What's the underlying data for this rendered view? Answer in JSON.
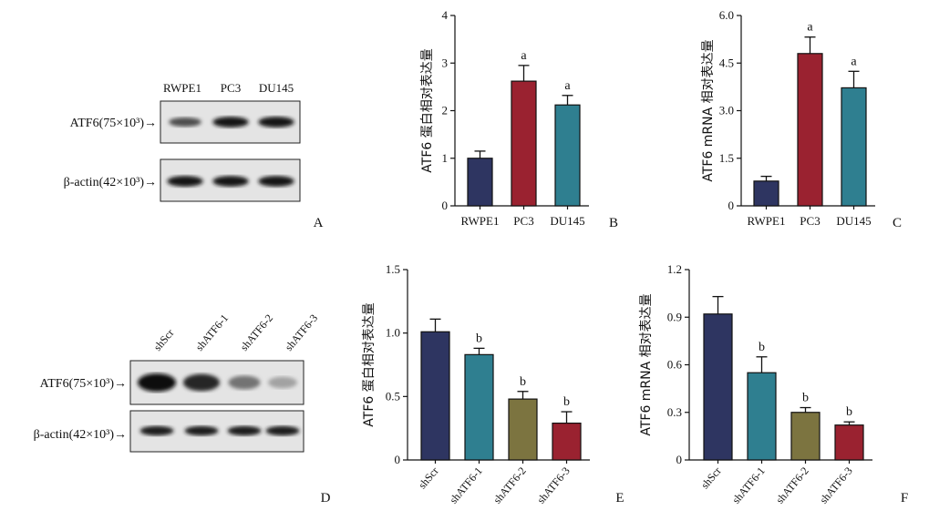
{
  "panel_letters": [
    "A",
    "B",
    "C",
    "D",
    "E",
    "F"
  ],
  "western_top": {
    "lanes": [
      "RWPE1",
      "PC3",
      "DU145"
    ],
    "rows": [
      {
        "label": "ATF6(75×10³)→",
        "intensity": [
          0.65,
          0.95,
          0.95
        ]
      },
      {
        "label": "β-actin(42×10³)→",
        "intensity": [
          0.95,
          0.95,
          0.95
        ]
      }
    ]
  },
  "western_bottom": {
    "lanes": [
      "shScr",
      "shATF6-1",
      "shATF6-2",
      "shATF6-3"
    ],
    "rows": [
      {
        "label": "ATF6(75×10³)→",
        "intensity": [
          1.0,
          0.85,
          0.45,
          0.2
        ]
      },
      {
        "label": "β-actin(42×10³)→",
        "intensity": [
          0.9,
          0.9,
          0.9,
          0.9
        ]
      }
    ]
  },
  "colors": {
    "navy": "#2e3561",
    "red": "#9a2230",
    "teal": "#2f7f90",
    "olive": "#7c7440"
  },
  "chart_data": [
    {
      "id": "B",
      "type": "bar",
      "ylabel": "ATF6 蛋白相对表达量",
      "categories": [
        "RWPE1",
        "PC3",
        "DU145"
      ],
      "values": [
        1.0,
        2.62,
        2.12
      ],
      "errors": [
        0.15,
        0.33,
        0.2
      ],
      "sig": [
        "",
        "a",
        "a"
      ],
      "ylim": [
        0,
        4
      ],
      "yticks": [
        "0",
        "1",
        "2",
        "3",
        "4"
      ],
      "colors": [
        "#2e3561",
        "#9a2230",
        "#2f7f90"
      ],
      "rotate": false
    },
    {
      "id": "C",
      "type": "bar",
      "ylabel": "ATF6 mRNA 相对表达量",
      "categories": [
        "RWPE1",
        "PC3",
        "DU145"
      ],
      "values": [
        0.78,
        4.8,
        3.72
      ],
      "errors": [
        0.15,
        0.52,
        0.52
      ],
      "sig": [
        "",
        "a",
        "a"
      ],
      "ylim": [
        0,
        6
      ],
      "yticks": [
        "0",
        "1.5",
        "3.0",
        "4.5",
        "6.0"
      ],
      "colors": [
        "#2e3561",
        "#9a2230",
        "#2f7f90"
      ],
      "rotate": false
    },
    {
      "id": "E",
      "type": "bar",
      "ylabel": "ATF6 蛋白相对表达量",
      "categories": [
        "shScr",
        "shATF6-1",
        "shATF6-2",
        "shATF6-3"
      ],
      "values": [
        1.01,
        0.83,
        0.48,
        0.29
      ],
      "errors": [
        0.1,
        0.05,
        0.06,
        0.09
      ],
      "sig": [
        "",
        "b",
        "b",
        "b"
      ],
      "ylim": [
        0,
        1.5
      ],
      "yticks": [
        "0",
        "0.5",
        "1.0",
        "1.5"
      ],
      "colors": [
        "#2e3561",
        "#2f7f90",
        "#7c7440",
        "#9a2230"
      ],
      "rotate": true
    },
    {
      "id": "F",
      "type": "bar",
      "ylabel": "ATF6 mRNA 相对表达量",
      "categories": [
        "shScr",
        "shATF6-1",
        "shATF6-2",
        "shATF6-3"
      ],
      "values": [
        0.92,
        0.55,
        0.3,
        0.22
      ],
      "errors": [
        0.11,
        0.1,
        0.03,
        0.02
      ],
      "sig": [
        "",
        "b",
        "b",
        "b"
      ],
      "ylim": [
        0,
        1.2
      ],
      "yticks": [
        "0",
        "0.3",
        "0.6",
        "0.9",
        "1.2"
      ],
      "colors": [
        "#2e3561",
        "#2f7f90",
        "#7c7440",
        "#9a2230"
      ],
      "rotate": true
    }
  ]
}
